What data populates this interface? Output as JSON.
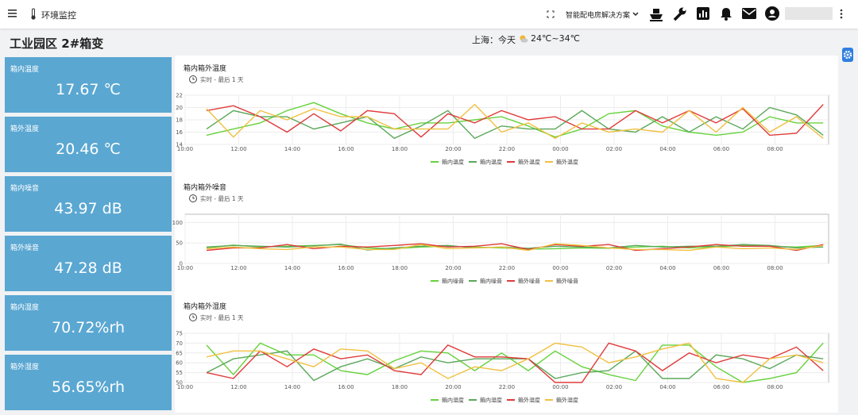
{
  "header": {
    "app_title": "环境监控",
    "solution": "智能配电房解决方案"
  },
  "page_title": "工业园区 2#箱变",
  "weather": {
    "city": "上海：今天",
    "range": "24℃~34℃"
  },
  "cards": [
    {
      "label": "箱内温度",
      "value": "17.67 ℃"
    },
    {
      "label": "箱外温度",
      "value": "20.46 ℃"
    },
    {
      "label": "箱内噪音",
      "value": "43.97 dB"
    },
    {
      "label": "箱外噪音",
      "value": "47.28 dB"
    },
    {
      "label": "箱内湿度",
      "value": "70.72%rh"
    },
    {
      "label": "箱外湿度",
      "value": "56.65%rh"
    }
  ],
  "chart_data": [
    {
      "type": "line",
      "title": "箱内箱外温度",
      "subtitle": "实时 - 最后 1 天",
      "x": [
        10.8,
        11.8,
        12.8,
        13.8,
        14.8,
        15.8,
        16.8,
        17.8,
        18.8,
        19.8,
        20.8,
        21.8,
        22.8,
        23.8,
        24.8,
        25.8,
        26.8,
        27.8,
        28.8,
        29.8,
        30.8,
        31.8,
        32.8,
        33.8
      ],
      "xlim": [
        10,
        34
      ],
      "xticks": [
        {
          "value": 10,
          "label": "10:00"
        },
        {
          "value": 12,
          "label": "12:00"
        },
        {
          "value": 14,
          "label": "14:00"
        },
        {
          "value": 16,
          "label": "16:00"
        },
        {
          "value": 18,
          "label": "18:00"
        },
        {
          "value": 20,
          "label": "20:00"
        },
        {
          "value": 22,
          "label": "22:00"
        },
        {
          "value": 24,
          "label": "00:00"
        },
        {
          "value": 26,
          "label": "02:00"
        },
        {
          "value": 28,
          "label": "04:00"
        },
        {
          "value": 30,
          "label": "06:00"
        },
        {
          "value": 32,
          "label": "08:00"
        }
      ],
      "ylim": [
        14,
        22
      ],
      "yticks": [
        14,
        16,
        18,
        20,
        22
      ],
      "grid": true,
      "series": [
        {
          "name": "箱内温度",
          "color": "#66d23c",
          "values": [
            15.5,
            16.5,
            17.5,
            19.5,
            20.8,
            19,
            17.5,
            16.5,
            17.5,
            17.5,
            18,
            18.5,
            17,
            15.2,
            16.5,
            19,
            19.5,
            17,
            16,
            15.5,
            16,
            18.5,
            17.5,
            17.5
          ]
        },
        {
          "name": "箱内温度",
          "color": "#5aa85a",
          "values": [
            16.5,
            19.5,
            18.5,
            18.5,
            16.5,
            17.5,
            18.5,
            15,
            17,
            19.5,
            15,
            17,
            16.5,
            16.5,
            19.5,
            16.5,
            16,
            18.5,
            16,
            18.5,
            16.5,
            20,
            18.8,
            15.5
          ]
        },
        {
          "name": "箱外温度",
          "color": "#e03a3a",
          "values": [
            19.5,
            20.3,
            18.5,
            16,
            19,
            16.2,
            19.5,
            19,
            15.2,
            19,
            17.5,
            19.5,
            18,
            18.5,
            16.5,
            16.5,
            19.5,
            17.5,
            19.5,
            17.5,
            19.8,
            15.5,
            15.8,
            20.5
          ]
        },
        {
          "name": "箱外温度",
          "color": "#f0c040",
          "values": [
            19.8,
            15.2,
            19.5,
            18,
            19.8,
            18.5,
            18.5,
            16.5,
            16.5,
            16.5,
            20.5,
            16,
            17.5,
            15,
            17.5,
            16,
            16.5,
            16,
            19.5,
            16,
            20,
            16,
            18.5,
            15
          ]
        }
      ]
    },
    {
      "type": "line",
      "title": "箱内箱外噪音",
      "subtitle": "实时 - 最后 1 天",
      "x": [
        10.8,
        11.8,
        12.8,
        13.8,
        14.8,
        15.8,
        16.8,
        17.8,
        18.8,
        19.8,
        20.8,
        21.8,
        22.8,
        23.8,
        24.8,
        25.8,
        26.8,
        27.8,
        28.8,
        29.8,
        30.8,
        31.8,
        32.8,
        33.8
      ],
      "xlim": [
        10,
        34
      ],
      "xticks": [
        {
          "value": 10,
          "label": "10:00"
        },
        {
          "value": 12,
          "label": "12:00"
        },
        {
          "value": 14,
          "label": "14:00"
        },
        {
          "value": 16,
          "label": "16:00"
        },
        {
          "value": 18,
          "label": "18:00"
        },
        {
          "value": 20,
          "label": "20:00"
        },
        {
          "value": 22,
          "label": "22:00"
        },
        {
          "value": 24,
          "label": "00:00"
        },
        {
          "value": 26,
          "label": "02:00"
        },
        {
          "value": 28,
          "label": "04:00"
        },
        {
          "value": 30,
          "label": "06:00"
        },
        {
          "value": 32,
          "label": "08:00"
        }
      ],
      "ylim": [
        0,
        120
      ],
      "yticks": [
        0,
        50,
        100
      ],
      "grid": true,
      "series": [
        {
          "name": "箱内噪音",
          "color": "#66d23c",
          "values": [
            38,
            45,
            40,
            42,
            44,
            46,
            38,
            36,
            40,
            42,
            40,
            38,
            35,
            36,
            38,
            37,
            40,
            42,
            38,
            40,
            44,
            42,
            40,
            44
          ]
        },
        {
          "name": "箱内噪音",
          "color": "#5aa85a",
          "values": [
            40,
            44,
            42,
            40,
            43,
            47,
            33,
            38,
            42,
            44,
            38,
            40,
            37,
            42,
            40,
            38,
            44,
            40,
            42,
            42,
            46,
            44,
            38,
            40
          ]
        },
        {
          "name": "箱外噪音",
          "color": "#e03a3a",
          "values": [
            32,
            38,
            38,
            46,
            36,
            42,
            40,
            44,
            48,
            40,
            42,
            48,
            34,
            46,
            42,
            46,
            32,
            36,
            40,
            46,
            42,
            42,
            32,
            46
          ]
        },
        {
          "name": "箱外噪音",
          "color": "#f0c040",
          "values": [
            36,
            40,
            36,
            34,
            40,
            40,
            34,
            34,
            46,
            36,
            38,
            40,
            32,
            48,
            44,
            38,
            34,
            34,
            32,
            40,
            36,
            38,
            34,
            44
          ]
        }
      ]
    },
    {
      "type": "line",
      "title": "箱内箱外湿度",
      "subtitle": "实时 - 最后 1 天",
      "x": [
        10.8,
        11.8,
        12.8,
        13.8,
        14.8,
        15.8,
        16.8,
        17.8,
        18.8,
        19.8,
        20.8,
        21.8,
        22.8,
        23.8,
        24.8,
        25.8,
        26.8,
        27.8,
        28.8,
        29.8,
        30.8,
        31.8,
        32.8,
        33.8
      ],
      "xlim": [
        10,
        34
      ],
      "xticks": [
        {
          "value": 10,
          "label": "10:00"
        },
        {
          "value": 12,
          "label": "12:00"
        },
        {
          "value": 14,
          "label": "14:00"
        },
        {
          "value": 16,
          "label": "16:00"
        },
        {
          "value": 18,
          "label": "18:00"
        },
        {
          "value": 20,
          "label": "20:00"
        },
        {
          "value": 22,
          "label": "22:00"
        },
        {
          "value": 24,
          "label": "00:00"
        },
        {
          "value": 26,
          "label": "02:00"
        },
        {
          "value": 28,
          "label": "04:00"
        },
        {
          "value": 30,
          "label": "06:00"
        },
        {
          "value": 32,
          "label": "08:00"
        }
      ],
      "ylim": [
        50,
        75
      ],
      "yticks": [
        50,
        55,
        60,
        65,
        70,
        75
      ],
      "grid": true,
      "series": [
        {
          "name": "箱内湿度",
          "color": "#66d23c",
          "values": [
            69,
            54,
            70,
            64,
            64,
            56,
            54,
            61,
            66,
            65,
            56,
            65,
            56,
            66,
            58,
            54,
            51,
            69,
            69,
            58,
            50,
            52,
            55,
            70
          ]
        },
        {
          "name": "箱内湿度",
          "color": "#5aa85a",
          "values": [
            55,
            62,
            64,
            66,
            51,
            58,
            62,
            57,
            63,
            60,
            62,
            62,
            62,
            52,
            55,
            56,
            66,
            52,
            52,
            64,
            62,
            57,
            64,
            62
          ]
        },
        {
          "name": "箱外湿度",
          "color": "#e03a3a",
          "values": [
            55,
            52,
            66,
            58,
            67,
            62,
            64,
            56,
            54,
            69,
            63,
            63,
            62,
            50,
            50,
            70,
            66,
            56,
            65,
            60,
            64,
            62,
            68,
            56
          ]
        },
        {
          "name": "箱外湿度",
          "color": "#f0c040",
          "values": [
            63,
            66,
            66,
            62,
            58,
            67,
            66,
            57,
            60,
            52,
            58,
            56,
            62,
            70,
            68,
            60,
            63,
            67,
            70,
            52,
            50,
            62,
            64,
            60
          ]
        }
      ]
    }
  ]
}
